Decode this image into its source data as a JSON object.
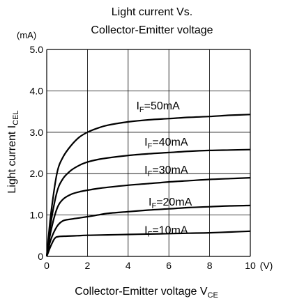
{
  "chart_data": {
    "type": "line",
    "title_line1": "Light  current Vs.",
    "title_line2": "Collector-Emitter voltage",
    "ylabel_main": "Light current I",
    "ylabel_sub": "CEL",
    "yunit": "(mA)",
    "xlabel_main": "Collector-Emitter voltage V",
    "xlabel_sub": "CE",
    "xunit": "(V)",
    "xlim": [
      0,
      10
    ],
    "ylim": [
      0,
      5
    ],
    "grid": true,
    "xticks": [
      0,
      2,
      4,
      6,
      8,
      10
    ],
    "xtick_labels": [
      "0",
      "2",
      "4",
      "6",
      "8",
      "10"
    ],
    "yticks": [
      0,
      1,
      2,
      3,
      4,
      5
    ],
    "ytick_labels": [
      "0",
      "1.0",
      "2.0",
      "3.0",
      "4.0",
      "5.0"
    ],
    "series": [
      {
        "name": "=50mA",
        "label_main": "I",
        "label_sub": "F",
        "label_rest": "=50mA",
        "label_at": [
          4.4,
          3.55
        ],
        "points": [
          [
            0,
            0
          ],
          [
            0.2,
            1.0
          ],
          [
            0.5,
            2.0
          ],
          [
            0.8,
            2.4
          ],
          [
            1.2,
            2.68
          ],
          [
            1.6,
            2.88
          ],
          [
            2,
            3.0
          ],
          [
            2.5,
            3.1
          ],
          [
            3,
            3.17
          ],
          [
            4,
            3.25
          ],
          [
            5,
            3.3
          ],
          [
            6,
            3.33
          ],
          [
            7,
            3.36
          ],
          [
            8,
            3.38
          ],
          [
            9,
            3.41
          ],
          [
            10,
            3.43
          ]
        ]
      },
      {
        "name": "=40mA",
        "label_main": "I",
        "label_sub": "F",
        "label_rest": "=40mA",
        "label_at": [
          4.8,
          2.68
        ],
        "points": [
          [
            0,
            0
          ],
          [
            0.2,
            0.8
          ],
          [
            0.5,
            1.55
          ],
          [
            0.8,
            1.88
          ],
          [
            1.2,
            2.08
          ],
          [
            1.6,
            2.2
          ],
          [
            2,
            2.28
          ],
          [
            2.5,
            2.34
          ],
          [
            3,
            2.38
          ],
          [
            4,
            2.44
          ],
          [
            5,
            2.48
          ],
          [
            6,
            2.51
          ],
          [
            7,
            2.54
          ],
          [
            8,
            2.56
          ],
          [
            9,
            2.57
          ],
          [
            10,
            2.58
          ]
        ]
      },
      {
        "name": "=30mA",
        "label_main": "I",
        "label_sub": "F",
        "label_rest": "=30mA",
        "label_at": [
          4.8,
          2.0
        ],
        "points": [
          [
            0,
            0
          ],
          [
            0.2,
            0.6
          ],
          [
            0.5,
            1.15
          ],
          [
            0.8,
            1.38
          ],
          [
            1.2,
            1.5
          ],
          [
            1.6,
            1.56
          ],
          [
            2,
            1.6
          ],
          [
            2.5,
            1.64
          ],
          [
            3,
            1.67
          ],
          [
            4,
            1.72
          ],
          [
            5,
            1.76
          ],
          [
            6,
            1.8
          ],
          [
            7,
            1.83
          ],
          [
            8,
            1.86
          ],
          [
            9,
            1.88
          ],
          [
            10,
            1.9
          ]
        ]
      },
      {
        "name": "=20mA",
        "label_main": "I",
        "label_sub": "F",
        "label_rest": "=20mA",
        "label_at": [
          5.0,
          1.23
        ],
        "points": [
          [
            0,
            0
          ],
          [
            0.2,
            0.4
          ],
          [
            0.5,
            0.72
          ],
          [
            0.8,
            0.86
          ],
          [
            1.2,
            0.9
          ],
          [
            1.6,
            0.93
          ],
          [
            2,
            0.96
          ],
          [
            2.5,
            1.0
          ],
          [
            3,
            1.04
          ],
          [
            4,
            1.08
          ],
          [
            5,
            1.12
          ],
          [
            6,
            1.15
          ],
          [
            7,
            1.18
          ],
          [
            8,
            1.2
          ],
          [
            9,
            1.22
          ],
          [
            10,
            1.23
          ]
        ]
      },
      {
        "name": "=10mA",
        "label_main": "I",
        "label_sub": "F",
        "label_rest": "=10mA",
        "label_at": [
          4.8,
          0.55
        ],
        "points": [
          [
            0,
            0
          ],
          [
            0.2,
            0.25
          ],
          [
            0.4,
            0.44
          ],
          [
            0.6,
            0.48
          ],
          [
            1,
            0.49
          ],
          [
            1.5,
            0.5
          ],
          [
            2,
            0.51
          ],
          [
            3,
            0.52
          ],
          [
            4,
            0.53
          ],
          [
            5,
            0.54
          ],
          [
            6,
            0.55
          ],
          [
            7,
            0.56
          ],
          [
            8,
            0.57
          ],
          [
            9,
            0.59
          ],
          [
            10,
            0.61
          ]
        ]
      }
    ]
  }
}
